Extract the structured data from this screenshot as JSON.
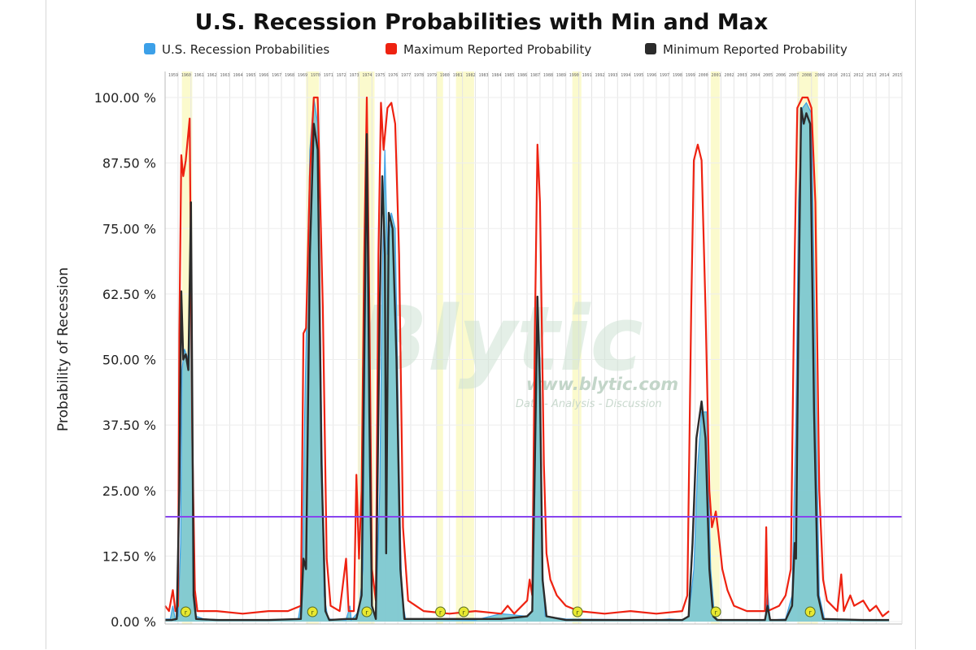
{
  "chart_data": {
    "type": "area",
    "title": "U.S. Recession Probabilities with Min and Max",
    "ylabel": "Probability of Recession",
    "ylim": [
      0,
      100
    ],
    "xlim": [
      1959,
      2016
    ],
    "y_ticks": [
      "0.00 %",
      "12.50 %",
      "25.00 %",
      "37.50 %",
      "50.00 %",
      "62.50 %",
      "75.00 %",
      "87.50 %",
      "100.00 %"
    ],
    "y_tick_values": [
      0,
      12.5,
      25,
      37.5,
      50,
      62.5,
      75,
      87.5,
      100
    ],
    "x_year_gridlines": [
      1959,
      1960,
      1961,
      1962,
      1963,
      1964,
      1965,
      1966,
      1967,
      1968,
      1969,
      1970,
      1971,
      1972,
      1973,
      1974,
      1975,
      1976,
      1977,
      1978,
      1979,
      1980,
      1981,
      1982,
      1983,
      1984,
      1985,
      1986,
      1987,
      1988,
      1989,
      1990,
      1991,
      1992,
      1993,
      1994,
      1995,
      1996,
      1997,
      1998,
      1999,
      2000,
      2001,
      2002,
      2003,
      2004,
      2005,
      2006,
      2007,
      2008,
      2009,
      2010,
      2011,
      2012,
      2013,
      2014,
      2015
    ],
    "threshold": 20,
    "grid": true,
    "legend_position": "top",
    "recession_bands": [
      [
        1960.3,
        1961.1
      ],
      [
        1969.9,
        1970.9
      ],
      [
        1973.9,
        1975.2
      ],
      [
        1980.0,
        1980.5
      ],
      [
        1981.5,
        1982.9
      ],
      [
        1990.5,
        1991.2
      ],
      [
        2001.2,
        2001.9
      ],
      [
        2007.9,
        2009.5
      ]
    ],
    "recession_markers_x": [
      1960.6,
      1970.4,
      1974.6,
      1980.3,
      1982.1,
      1990.9,
      2001.6,
      2008.9
    ],
    "series": [
      {
        "name": "U.S. Recession Probabilities",
        "color": "#3ca0e8",
        "fill": "#7dc8d0",
        "points": [
          [
            1959,
            0.5
          ],
          [
            1959.4,
            0.5
          ],
          [
            1959.6,
            3
          ],
          [
            1959.8,
            0.3
          ],
          [
            1960.0,
            1
          ],
          [
            1960.2,
            15
          ],
          [
            1960.3,
            48
          ],
          [
            1960.5,
            52
          ],
          [
            1960.8,
            50
          ],
          [
            1961.0,
            78
          ],
          [
            1961.2,
            10
          ],
          [
            1961.4,
            1
          ],
          [
            1962.0,
            0.5
          ],
          [
            1964.0,
            0.3
          ],
          [
            1967.0,
            0.3
          ],
          [
            1969.3,
            0.5
          ],
          [
            1969.6,
            5
          ],
          [
            1969.8,
            40
          ],
          [
            1970.2,
            90
          ],
          [
            1970.5,
            100
          ],
          [
            1970.8,
            95
          ],
          [
            1971.1,
            40
          ],
          [
            1971.3,
            5
          ],
          [
            1971.6,
            0.5
          ],
          [
            1973.0,
            0.3
          ],
          [
            1973.3,
            3
          ],
          [
            1973.4,
            0.3
          ],
          [
            1974.0,
            2
          ],
          [
            1974.3,
            10
          ],
          [
            1974.5,
            60
          ],
          [
            1974.6,
            95
          ],
          [
            1974.7,
            80
          ],
          [
            1974.8,
            30
          ],
          [
            1975.0,
            3
          ],
          [
            1975.3,
            0.5
          ],
          [
            1975.6,
            25
          ],
          [
            1975.8,
            65
          ],
          [
            1976.0,
            90
          ],
          [
            1976.2,
            70
          ],
          [
            1976.5,
            78
          ],
          [
            1976.8,
            75
          ],
          [
            1977.1,
            30
          ],
          [
            1977.3,
            5
          ],
          [
            1977.6,
            0.5
          ],
          [
            1983.0,
            0.3
          ],
          [
            1985.0,
            1.5
          ],
          [
            1987.0,
            1
          ],
          [
            1987.4,
            2
          ],
          [
            1987.6,
            25
          ],
          [
            1987.8,
            62
          ],
          [
            1988.0,
            50
          ],
          [
            1988.2,
            10
          ],
          [
            1988.4,
            1
          ],
          [
            1990.0,
            0.5
          ],
          [
            1997.0,
            0.3
          ],
          [
            1998.0,
            0.5
          ],
          [
            1999.0,
            0.3
          ],
          [
            1999.5,
            1
          ],
          [
            1999.9,
            10
          ],
          [
            2000.2,
            30
          ],
          [
            2000.5,
            40
          ],
          [
            2000.9,
            40
          ],
          [
            2001.2,
            10
          ],
          [
            2001.5,
            1
          ],
          [
            2001.8,
            0.3
          ],
          [
            2005.4,
            0.3
          ],
          [
            2005.6,
            6
          ],
          [
            2005.8,
            0.3
          ],
          [
            2007.0,
            0.5
          ],
          [
            2007.5,
            5
          ],
          [
            2007.8,
            40
          ],
          [
            2008.0,
            80
          ],
          [
            2008.3,
            98
          ],
          [
            2008.6,
            99
          ],
          [
            2009.0,
            97
          ],
          [
            2009.3,
            50
          ],
          [
            2009.6,
            5
          ],
          [
            2010.0,
            0.5
          ],
          [
            2013.0,
            0.3
          ],
          [
            2014.5,
            0.3
          ],
          [
            2015.0,
            0.3
          ]
        ]
      },
      {
        "name": "Maximum Reported Probability",
        "color": "#ee2211",
        "points": [
          [
            1959,
            3
          ],
          [
            1959.3,
            2
          ],
          [
            1959.6,
            6
          ],
          [
            1959.8,
            2
          ],
          [
            1960.0,
            3
          ],
          [
            1960.1,
            55
          ],
          [
            1960.25,
            89
          ],
          [
            1960.4,
            85
          ],
          [
            1960.6,
            88
          ],
          [
            1960.9,
            96
          ],
          [
            1961.1,
            35
          ],
          [
            1961.3,
            6
          ],
          [
            1961.5,
            2
          ],
          [
            1963.0,
            2
          ],
          [
            1965.0,
            1.5
          ],
          [
            1967.0,
            2
          ],
          [
            1968.5,
            2
          ],
          [
            1969.5,
            3
          ],
          [
            1969.7,
            55
          ],
          [
            1969.9,
            56
          ],
          [
            1970.2,
            85
          ],
          [
            1970.5,
            100
          ],
          [
            1970.8,
            100
          ],
          [
            1971.2,
            60
          ],
          [
            1971.5,
            12
          ],
          [
            1971.8,
            3
          ],
          [
            1972.5,
            2
          ],
          [
            1973.0,
            12
          ],
          [
            1973.2,
            2
          ],
          [
            1973.6,
            2
          ],
          [
            1973.8,
            28
          ],
          [
            1974.0,
            12
          ],
          [
            1974.2,
            25
          ],
          [
            1974.4,
            70
          ],
          [
            1974.6,
            100
          ],
          [
            1974.8,
            60
          ],
          [
            1975.0,
            10
          ],
          [
            1975.3,
            4
          ],
          [
            1975.5,
            70
          ],
          [
            1975.7,
            99
          ],
          [
            1975.9,
            90
          ],
          [
            1976.2,
            98
          ],
          [
            1976.5,
            99
          ],
          [
            1976.8,
            95
          ],
          [
            1977.1,
            70
          ],
          [
            1977.4,
            18
          ],
          [
            1977.8,
            4
          ],
          [
            1979.0,
            2
          ],
          [
            1981.0,
            1.5
          ],
          [
            1983.0,
            2
          ],
          [
            1985.0,
            1.5
          ],
          [
            1985.5,
            3
          ],
          [
            1986.0,
            1.5
          ],
          [
            1987.0,
            4
          ],
          [
            1987.2,
            8
          ],
          [
            1987.4,
            5
          ],
          [
            1987.6,
            55
          ],
          [
            1987.8,
            91
          ],
          [
            1988.0,
            80
          ],
          [
            1988.3,
            30
          ],
          [
            1988.5,
            13
          ],
          [
            1988.8,
            8
          ],
          [
            1989.3,
            5
          ],
          [
            1990.0,
            3
          ],
          [
            1991.0,
            2
          ],
          [
            1993.0,
            1.5
          ],
          [
            1995.0,
            2
          ],
          [
            1997.0,
            1.5
          ],
          [
            1999.0,
            2
          ],
          [
            1999.4,
            5
          ],
          [
            1999.7,
            60
          ],
          [
            1999.9,
            88
          ],
          [
            2000.2,
            91
          ],
          [
            2000.5,
            88
          ],
          [
            2000.8,
            60
          ],
          [
            2001.1,
            25
          ],
          [
            2001.3,
            18
          ],
          [
            2001.6,
            21
          ],
          [
            2001.8,
            17
          ],
          [
            2002.1,
            10
          ],
          [
            2002.5,
            6
          ],
          [
            2003.0,
            3
          ],
          [
            2004.0,
            2
          ],
          [
            2005.0,
            2
          ],
          [
            2005.4,
            2
          ],
          [
            2005.5,
            18
          ],
          [
            2005.6,
            2
          ],
          [
            2006.5,
            3
          ],
          [
            2007.0,
            5
          ],
          [
            2007.4,
            10
          ],
          [
            2007.7,
            70
          ],
          [
            2007.9,
            98
          ],
          [
            2008.3,
            100
          ],
          [
            2008.7,
            100
          ],
          [
            2009.0,
            98
          ],
          [
            2009.3,
            80
          ],
          [
            2009.6,
            25
          ],
          [
            2009.9,
            8
          ],
          [
            2010.2,
            4
          ],
          [
            2011.0,
            2
          ],
          [
            2011.3,
            9
          ],
          [
            2011.5,
            2
          ],
          [
            2012.0,
            5
          ],
          [
            2012.3,
            3
          ],
          [
            2013.0,
            4
          ],
          [
            2013.5,
            2
          ],
          [
            2014.0,
            3
          ],
          [
            2014.5,
            1
          ],
          [
            2015.0,
            2
          ]
        ]
      },
      {
        "name": "Minimum Reported Probability",
        "color": "#2b2b2b",
        "points": [
          [
            1959,
            0.3
          ],
          [
            1959.5,
            0.3
          ],
          [
            1959.9,
            0.5
          ],
          [
            1960.1,
            25
          ],
          [
            1960.25,
            63
          ],
          [
            1960.4,
            50
          ],
          [
            1960.6,
            51
          ],
          [
            1960.8,
            48
          ],
          [
            1961.0,
            80
          ],
          [
            1961.2,
            5
          ],
          [
            1961.4,
            0.5
          ],
          [
            1963.0,
            0.3
          ],
          [
            1967.0,
            0.3
          ],
          [
            1969.5,
            0.5
          ],
          [
            1969.7,
            12
          ],
          [
            1969.9,
            10
          ],
          [
            1970.2,
            70
          ],
          [
            1970.5,
            95
          ],
          [
            1970.8,
            90
          ],
          [
            1971.1,
            30
          ],
          [
            1971.4,
            2
          ],
          [
            1971.7,
            0.3
          ],
          [
            1973.0,
            0.5
          ],
          [
            1973.8,
            0.5
          ],
          [
            1974.2,
            5
          ],
          [
            1974.4,
            50
          ],
          [
            1974.6,
            93
          ],
          [
            1974.8,
            40
          ],
          [
            1975.0,
            3
          ],
          [
            1975.3,
            0.5
          ],
          [
            1975.6,
            60
          ],
          [
            1975.8,
            85
          ],
          [
            1976.0,
            70
          ],
          [
            1976.1,
            13
          ],
          [
            1976.3,
            78
          ],
          [
            1976.6,
            75
          ],
          [
            1976.9,
            50
          ],
          [
            1977.2,
            10
          ],
          [
            1977.5,
            0.5
          ],
          [
            1985.0,
            0.5
          ],
          [
            1987.0,
            1
          ],
          [
            1987.4,
            2
          ],
          [
            1987.6,
            30
          ],
          [
            1987.8,
            62
          ],
          [
            1988.0,
            45
          ],
          [
            1988.2,
            8
          ],
          [
            1988.5,
            1
          ],
          [
            1990.0,
            0.3
          ],
          [
            1997.0,
            0.3
          ],
          [
            1999.0,
            0.3
          ],
          [
            1999.5,
            1
          ],
          [
            1999.8,
            15
          ],
          [
            2000.1,
            35
          ],
          [
            2000.5,
            42
          ],
          [
            2000.8,
            35
          ],
          [
            2001.1,
            10
          ],
          [
            2001.4,
            1
          ],
          [
            2001.7,
            0.3
          ],
          [
            2005.4,
            0.3
          ],
          [
            2005.6,
            3
          ],
          [
            2005.8,
            0.3
          ],
          [
            2007.0,
            0.3
          ],
          [
            2007.5,
            3
          ],
          [
            2007.7,
            15
          ],
          [
            2007.8,
            12
          ],
          [
            2008.0,
            60
          ],
          [
            2008.2,
            98
          ],
          [
            2008.4,
            95
          ],
          [
            2008.6,
            97
          ],
          [
            2008.9,
            95
          ],
          [
            2009.2,
            40
          ],
          [
            2009.5,
            5
          ],
          [
            2009.9,
            0.5
          ],
          [
            2013.0,
            0.3
          ],
          [
            2014.5,
            0.3
          ],
          [
            2015.0,
            0.3
          ]
        ]
      }
    ]
  },
  "watermark": {
    "brand": "Blytic",
    "url": "www.blytic.com",
    "tagline": "Data - Analysis - Discussion"
  },
  "colors": {
    "band": "#fbfacd",
    "threshold": "#8844ee",
    "marker": "#e8e830",
    "grid": "#e4e4e4"
  }
}
